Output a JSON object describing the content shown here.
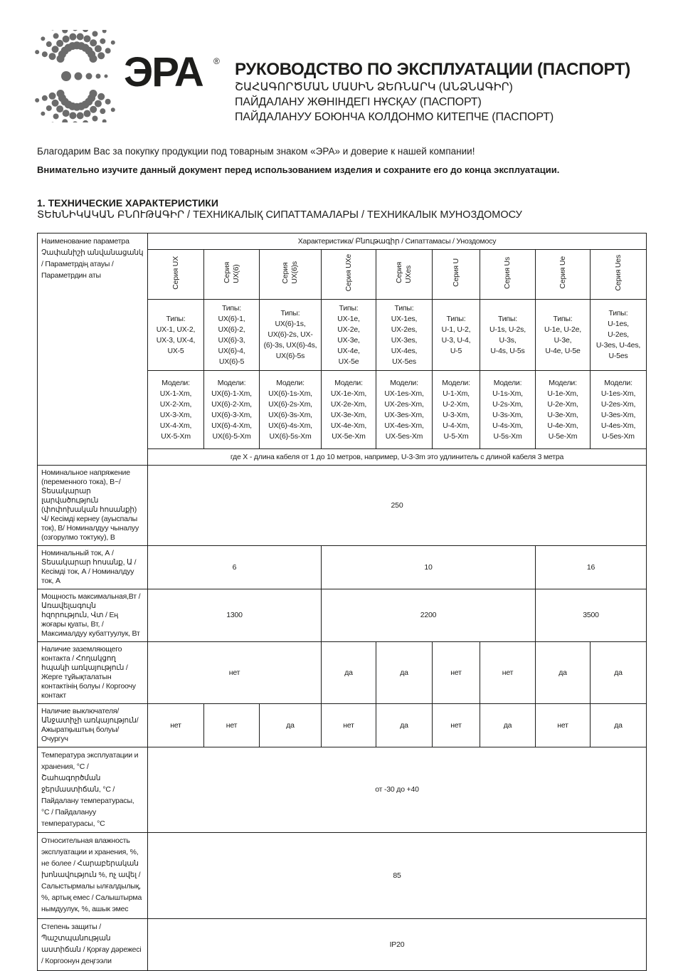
{
  "logo": {
    "text": "ЭРА",
    "registered": "®",
    "color": "#6b6b6b"
  },
  "header": {
    "title": "РУКОВОДСТВО ПО ЭКСПЛУАТАЦИИ (ПАСПОРТ)",
    "subtitles": [
      "ՇԱՀԱԳՈՐԾՄԱՆ ՄԱՍԻՆ ՁԵՌՆԱՐԿ (ԱՆՁՆԱԳԻՐ)",
      "ПАЙДАЛАНУ ЖӨНІНДЕГІ НҰСҚАУ (ПАСПОРТ)",
      "ПАЙДАЛАНУУ БОЮНЧА КОЛДОНМО КИТЕПЧЕ (ПАСПОРТ)"
    ]
  },
  "intro": {
    "thanks": "Благодарим Вас за покупку продукции под товарным знаком «ЭРА» и доверие к нашей компании!",
    "warning": "Внимательно изучите данный документ перед использованием изделия и сохраните его до конца эксплуатации."
  },
  "section": {
    "title": "1. ТЕХНИЧЕСКИЕ ХАРАКТЕРИСТИКИ",
    "subtitle": "ՏԵԽՆԻԿԱԿԱՆ ԲՆՈՒԹԱԳԻՐ /  ТЕХНИКАЛЫҚ СИПАТТАМАЛАРЫ / ТЕХНИКАЛЫК МУНОЗДОМОСУ"
  },
  "table": {
    "param_header": "Наименование параметра\n Չափանիշի անվանացանկ\n/ Параметрдің атауы /\nПараметрдин аты",
    "char_header": "Характеристика/ Բնութագիր / Сипаттамасы / Уноздомосу",
    "series": [
      "Серия UX",
      "Серия\nUX(6)",
      "Серия\nUX(6)s",
      "Серия UXe",
      "Серия\nUXes",
      "Серия U",
      "Серия Us",
      "Серия Ue",
      "Серия Ues"
    ],
    "types": [
      "Типы:\nUX-1, UX-2,\nUX-3, UX-4,\nUX-5",
      "Типы:\nUX(6)-1,\nUX(6)-2,\nUX(6)-3,\nUX(6)-4,\nUX(6)-5",
      "Типы:\nUX(6)-1s,\nUX(6)-2s, UX-\n(6)-3s, UX(6)-4s,\nUX(6)-5s",
      "Типы:\nUX-1e,\nUX-2e,\nUX-3e,\nUX-4e,\nUX-5e",
      "Типы:\nUX-1es,\nUX-2es,\nUX-3es,\nUX-4es,\nUX-5es",
      "Типы:\nU-1, U-2,\nU-3, U-4,\nU-5",
      "Типы:\nU-1s, U-2s,\nU-3s,\nU-4s, U-5s",
      "Типы:\nU-1e, U-2e,\nU-3e,\nU-4e, U-5e",
      "Типы:\nU-1es,\nU-2es,\nU-3es, U-4es,\nU-5es"
    ],
    "models": [
      "Модели:\nUX-1-Xm,\nUX-2-Xm,\nUX-3-Xm,\nUX-4-Xm,\nUX-5-Xm",
      "Модели:\nUX(6)-1-Xm,\nUX(6)-2-Xm,\nUX(6)-3-Xm,\nUX(6)-4-Xm,\nUX(6)-5-Xm",
      "Модели:\nUX(6)-1s-Xm,\nUX(6)-2s-Xm,\nUX(6)-3s-Xm,\nUX(6)-4s-Xm,\nUX(6)-5s-Xm",
      "Модели:\nUX-1e-Xm,\nUX-2e-Xm,\nUX-3e-Xm,\nUX-4e-Xm,\nUX-5e-Xm",
      "Модели:\nUX-1es-Xm,\nUX-2es-Xm,\nUX-3es-Xm,\nUX-4es-Xm,\nUX-5es-Xm",
      "Модели:\nU-1-Xm,\nU-2-Xm,\nU-3-Xm,\nU-4-Xm,\nU-5-Xm",
      "Модели:\nU-1s-Xm,\nU-2s-Xm,\nU-3s-Xm,\nU-4s-Xm,\nU-5s-Xm",
      "Модели:\nU-1e-Xm,\nU-2e-Xm,\nU-3e-Xm,\nU-4e-Xm,\nU-5e-Xm",
      "Модели:\nU-1es-Xm,\nU-2es-Xm,\nU-3es-Xm,\nU-4es-Xm,\nU-5es-Xm"
    ],
    "note": "где X - длина кабеля от 1 до 10 метров, например, U-3-3m это удлинитель с длиной кабеля 3 метра",
    "voltage": {
      "label": "Номинальное напряжение (переменного тока), В~/ Տեսակարար լարվածություն (փոփոխական հոսանքի) Վ/ Кесімді кернеу (ауыспалы ток), В/ Номиналдуу чыналуу (озгорулмо токтуку), В",
      "value": "250"
    },
    "current": {
      "label": "Номинальный ток, А / Տեսակարար հոսանք, Ա / Кесімді ток, А / Номиналдуу ток, А",
      "values": [
        "6",
        "10",
        "16"
      ]
    },
    "power": {
      "label": "Мощность максимальная,Вт / Առավելագույն հզորություն, Վտ / Ең жоғары қуаты, Вт,  / Максималдуу кубаттуулук, Вт",
      "values": [
        "1300",
        "2200",
        "3500"
      ]
    },
    "grounding": {
      "label": "Наличие заземляющего контакта / Հողակցող հպակի առկայություն / Жерге тұйықталатын контактінің болуы / Коргоочу контакт",
      "values": [
        "нет",
        "да",
        "да",
        "нет",
        "нет",
        "да",
        "да"
      ]
    },
    "switch": {
      "label": "Наличие выключателя/ Անջատիչի առկայություն/ Ажыратқыштың болуы/ Очургуч",
      "values": [
        "нет",
        "нет",
        "да",
        "нет",
        "да",
        "нет",
        "да",
        "нет",
        "да"
      ]
    },
    "temperature": {
      "label": "Температура эксплуатации и хранения, °C / Շահագործման ջերմաստիճան, °C / Пайдалану температурасы, °C / Пайдалануу температурасы, °C",
      "value": "от -30 до +40"
    },
    "humidity": {
      "label": "Относительная влажность эксплуатации и хранения, %, не более / Հարաբերական խոնավություն %, ոչ ավել / Салыстырмалы ылғалдылық, %, артық емес / Салыштырма нымдуулук, %, ашык эмес",
      "value": "85"
    },
    "protection": {
      "label": "Степень защиты / Պաշտպանության աստիճան / Қорғау дәрежесі / Коргоонун деңгээли",
      "value": "IP20"
    }
  }
}
